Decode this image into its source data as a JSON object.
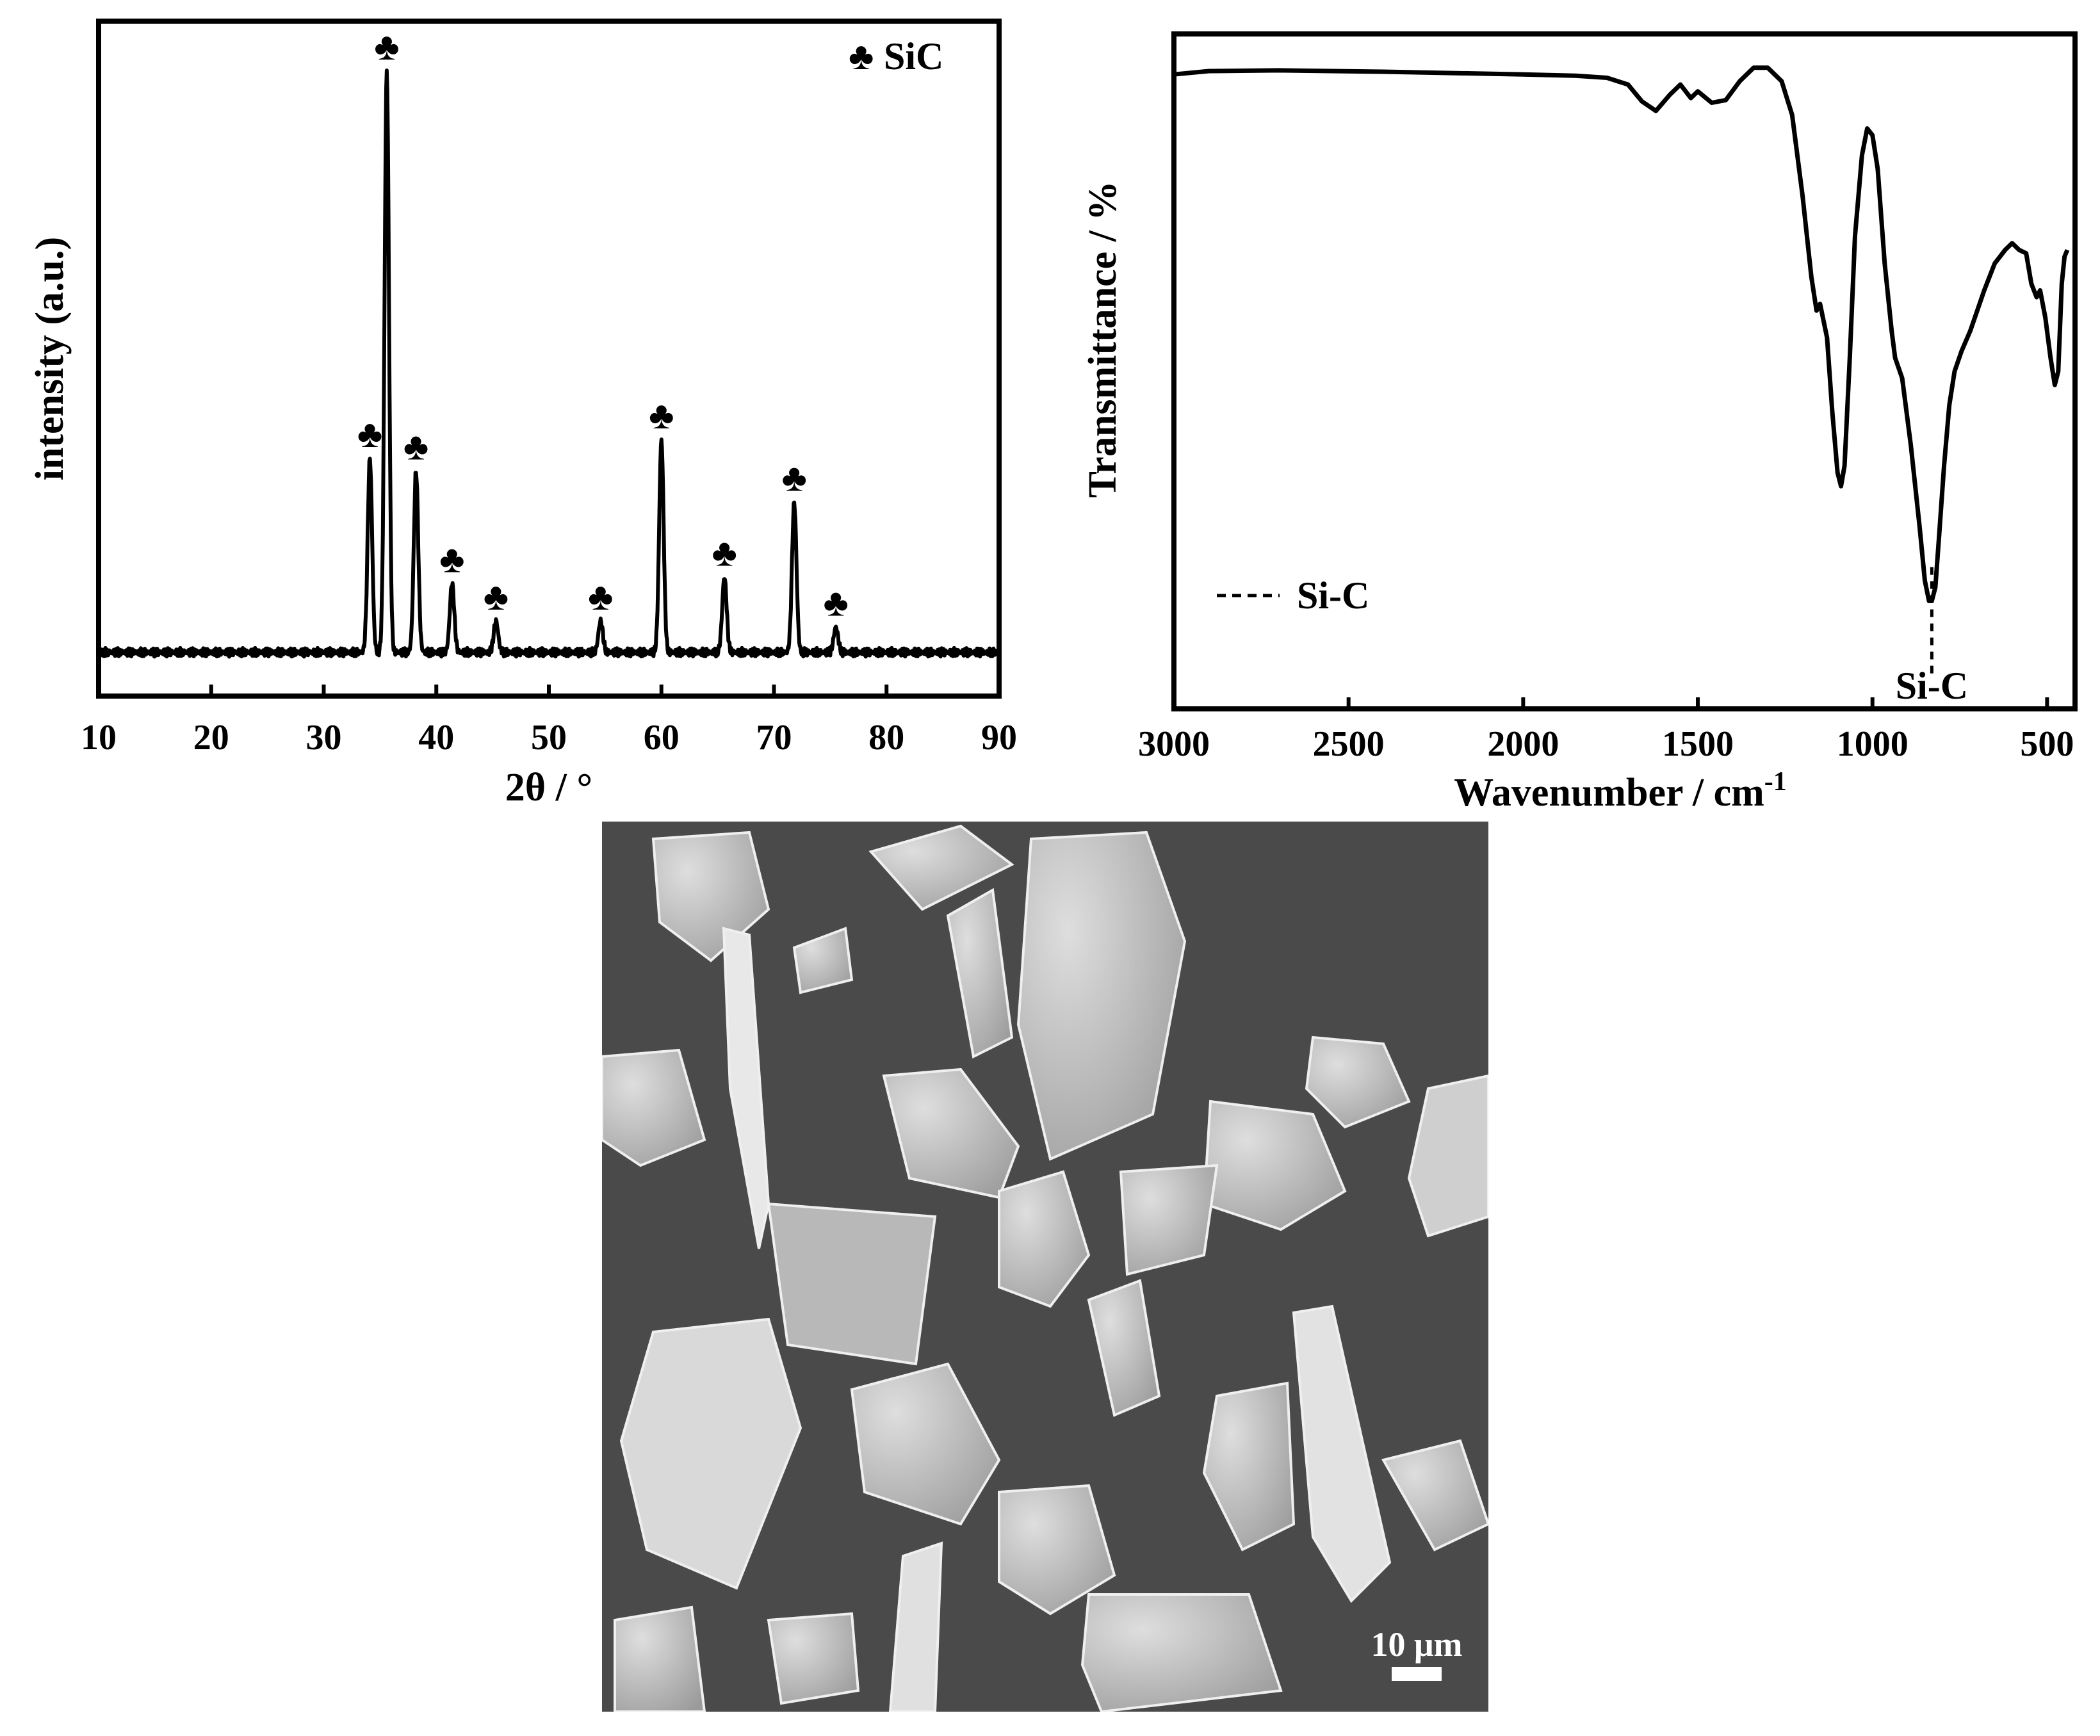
{
  "chart_data": [
    {
      "type": "line",
      "xlabel": "2θ / °",
      "ylabel": "intensity (a.u.)",
      "xlim": [
        10,
        90
      ],
      "xticks": [
        10,
        20,
        30,
        40,
        50,
        60,
        70,
        80,
        90
      ],
      "ylim": [
        0,
        1.08
      ],
      "legend": {
        "symbol": "♣",
        "label": "SiC",
        "placement": "top-right"
      },
      "baseline": 0.07,
      "peaks": [
        {
          "x": 34.1,
          "y": 0.38
        },
        {
          "x": 35.6,
          "y": 1.0
        },
        {
          "x": 38.2,
          "y": 0.36
        },
        {
          "x": 41.4,
          "y": 0.18
        },
        {
          "x": 45.3,
          "y": 0.12
        },
        {
          "x": 54.6,
          "y": 0.12
        },
        {
          "x": 60.0,
          "y": 0.41
        },
        {
          "x": 65.6,
          "y": 0.19
        },
        {
          "x": 71.8,
          "y": 0.31
        },
        {
          "x": 75.5,
          "y": 0.11
        }
      ],
      "marker": "♣"
    },
    {
      "type": "line",
      "xlabel": "Wavenumber / cm",
      "xlabel_superscript": "-1",
      "ylabel": "Transmittance / %",
      "xlim": [
        3000,
        420
      ],
      "xticks": [
        3000,
        2500,
        2000,
        1500,
        1000,
        500
      ],
      "ylim": [
        0,
        100
      ],
      "legend": {
        "style": "dashed",
        "label": "Si-C",
        "placement": "bottom-left"
      },
      "annotation": {
        "label": "Si-C",
        "x": 830
      },
      "series": [
        {
          "points": [
            [
              3000,
              94
            ],
            [
              2900,
              94.5
            ],
            [
              2700,
              94.6
            ],
            [
              2400,
              94.4
            ],
            [
              2000,
              94.0
            ],
            [
              1850,
              93.8
            ],
            [
              1760,
              93.5
            ],
            [
              1700,
              92.5
            ],
            [
              1660,
              90
            ],
            [
              1620,
              88.6
            ],
            [
              1580,
              91
            ],
            [
              1550,
              92.5
            ],
            [
              1520,
              90.5
            ],
            [
              1500,
              91.5
            ],
            [
              1460,
              89.8
            ],
            [
              1420,
              90.2
            ],
            [
              1380,
              93
            ],
            [
              1340,
              95
            ],
            [
              1300,
              95
            ],
            [
              1260,
              93
            ],
            [
              1230,
              88
            ],
            [
              1200,
              76
            ],
            [
              1175,
              64
            ],
            [
              1160,
              59
            ],
            [
              1150,
              60
            ],
            [
              1130,
              55
            ],
            [
              1115,
              44
            ],
            [
              1100,
              35
            ],
            [
              1090,
              33
            ],
            [
              1080,
              36
            ],
            [
              1065,
              52
            ],
            [
              1050,
              70
            ],
            [
              1030,
              82
            ],
            [
              1015,
              86
            ],
            [
              1000,
              85
            ],
            [
              985,
              80
            ],
            [
              965,
              66
            ],
            [
              945,
              56
            ],
            [
              935,
              52
            ],
            [
              915,
              49
            ],
            [
              890,
              39
            ],
            [
              865,
              27
            ],
            [
              850,
              19
            ],
            [
              838,
              16
            ],
            [
              830,
              16
            ],
            [
              820,
              18
            ],
            [
              810,
              25
            ],
            [
              795,
              36
            ],
            [
              780,
              45
            ],
            [
              765,
              50
            ],
            [
              745,
              53
            ],
            [
              720,
              56
            ],
            [
              700,
              59
            ],
            [
              680,
              62
            ],
            [
              650,
              66
            ],
            [
              620,
              68
            ],
            [
              600,
              69
            ],
            [
              580,
              68
            ],
            [
              560,
              67.5
            ],
            [
              545,
              63
            ],
            [
              530,
              61
            ],
            [
              520,
              62
            ],
            [
              505,
              58
            ],
            [
              490,
              52
            ],
            [
              478,
              48
            ],
            [
              468,
              50
            ],
            [
              458,
              63
            ],
            [
              450,
              67
            ],
            [
              442,
              68
            ]
          ]
        }
      ]
    }
  ],
  "sem": {
    "scale_label": "10 μm"
  }
}
